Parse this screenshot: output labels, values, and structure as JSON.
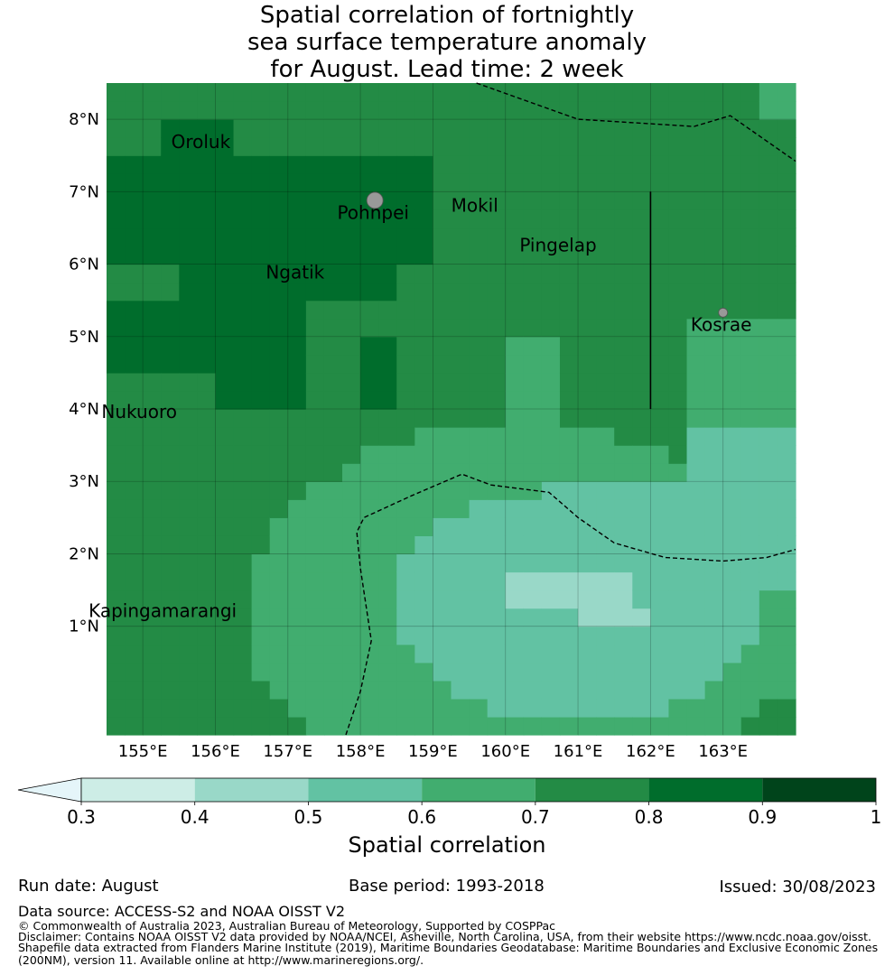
{
  "title": {
    "line1": "Spatial correlation of fortnightly",
    "line2": "sea surface temperature anomaly",
    "line3": "for August. Lead time: 2 week"
  },
  "map": {
    "lon_labels": [
      "155°E",
      "156°E",
      "157°E",
      "158°E",
      "159°E",
      "160°E",
      "161°E",
      "162°E",
      "163°E"
    ],
    "lat_labels": [
      "8°N",
      "7°N",
      "6°N",
      "5°N",
      "4°N",
      "3°N",
      "2°N",
      "1°N"
    ],
    "extent": {
      "lon_min": 154.5,
      "lon_max": 164.0,
      "lat_min": -0.5,
      "lat_max": 8.5
    },
    "places": [
      {
        "name": "Oroluk",
        "lon": 155.8,
        "lat": 7.6
      },
      {
        "name": "Pohnpei",
        "lon": 158.2,
        "lat": 6.9
      },
      {
        "name": "Mokil",
        "lon": 159.8,
        "lat": 6.7
      },
      {
        "name": "Pingelap",
        "lon": 160.7,
        "lat": 6.2
      },
      {
        "name": "Ngatik",
        "lon": 157.1,
        "lat": 5.8
      },
      {
        "name": "Kosrae",
        "lon": 163.0,
        "lat": 5.3
      },
      {
        "name": "Nukuoro",
        "lon": 155.0,
        "lat": 3.9
      },
      {
        "name": "Kapingamarangi",
        "lon": 154.8,
        "lat": 1.1
      }
    ],
    "colors": {
      "c03": "#cdede6",
      "c04": "#99d8c8",
      "c05": "#62c2a3",
      "c06": "#41ad6f",
      "c07": "#238b45",
      "c08": "#006d2c",
      "c09": "#00441b",
      "under": "#e5f5f9",
      "land": "#999999"
    }
  },
  "colorbar": {
    "ticks": [
      "0.3",
      "0.4",
      "0.5",
      "0.6",
      "0.7",
      "0.8",
      "0.9",
      "1"
    ],
    "label": "Spatial correlation"
  },
  "footer": {
    "run_date": "Run date: August",
    "base_period": "Base period: 1993-2018",
    "issued": "Issued: 30/08/2023",
    "data_source": "Data source: ACCESS-S2 and NOAA OISST V2",
    "copyright": "© Commonwealth of Australia 2023, Australian Bureau of Meteorology, Supported by COSPPac",
    "disclaimer1": "Disclaimer: Contains NOAA OISST V2 data provided by NOAA/NCEI, Asheville, North Carolina, USA, from their website https://www.ncdc.noaa.gov/oisst.",
    "disclaimer2": "Shapefile data extracted from Flanders Marine Institute (2019), Maritime Boundaries Geodatabase: Maritime Boundaries and Exclusive Economic Zones",
    "disclaimer3": "(200NM), version 11. Available online at http://www.marineregions.org/."
  }
}
